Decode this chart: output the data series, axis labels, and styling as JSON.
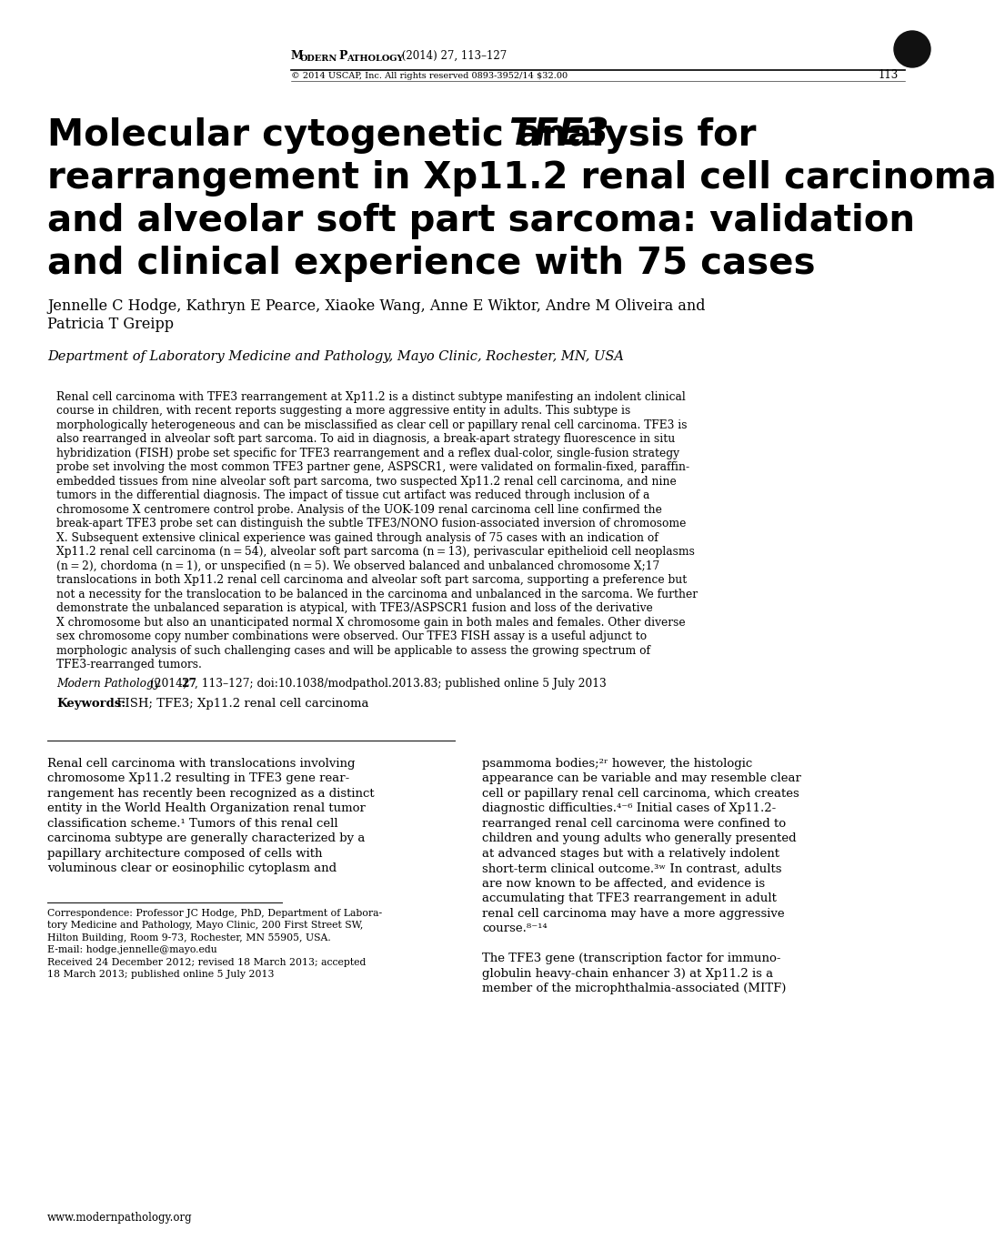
{
  "bg_color": "#ffffff",
  "header_copyright": "© 2014 USCAP, Inc. All rights reserved 0893-3952/14 $32.00",
  "header_page": "113",
  "title_line1_normal": "Molecular cytogenetic analysis for ",
  "title_line1_italic": "TFE3",
  "title_line2": "rearrangement in Xp11.2 renal cell carcinoma",
  "title_line3": "and alveolar soft part sarcoma: validation",
  "title_line4": "and clinical experience with 75 cases",
  "authors_line1": "Jennelle C Hodge, Kathryn E Pearce, Xiaoke Wang, Anne E Wiktor, Andre M Oliveira and",
  "authors_line2": "Patricia T Greipp",
  "affiliation": "Department of Laboratory Medicine and Pathology, Mayo Clinic, Rochester, MN, USA",
  "abstract_lines": [
    "Renal cell carcinoma with TFE3 rearrangement at Xp11.2 is a distinct subtype manifesting an indolent clinical",
    "course in children, with recent reports suggesting a more aggressive entity in adults. This subtype is",
    "morphologically heterogeneous and can be misclassified as clear cell or papillary renal cell carcinoma. TFE3 is",
    "also rearranged in alveolar soft part sarcoma. To aid in diagnosis, a break-apart strategy fluorescence in situ",
    "hybridization (FISH) probe set specific for TFE3 rearrangement and a reflex dual-color, single-fusion strategy",
    "probe set involving the most common TFE3 partner gene, ASPSCR1, were validated on formalin-fixed, paraffin-",
    "embedded tissues from nine alveolar soft part sarcoma, two suspected Xp11.2 renal cell carcinoma, and nine",
    "tumors in the differential diagnosis. The impact of tissue cut artifact was reduced through inclusion of a",
    "chromosome X centromere control probe. Analysis of the UOK-109 renal carcinoma cell line confirmed the",
    "break-apart TFE3 probe set can distinguish the subtle TFE3/NONO fusion-associated inversion of chromosome",
    "X. Subsequent extensive clinical experience was gained through analysis of 75 cases with an indication of",
    "Xp11.2 renal cell carcinoma (n = 54), alveolar soft part sarcoma (n = 13), perivascular epithelioid cell neoplasms",
    "(n = 2), chordoma (n = 1), or unspecified (n = 5). We observed balanced and unbalanced chromosome X;17",
    "translocations in both Xp11.2 renal cell carcinoma and alveolar soft part sarcoma, supporting a preference but",
    "not a necessity for the translocation to be balanced in the carcinoma and unbalanced in the sarcoma. We further",
    "demonstrate the unbalanced separation is atypical, with TFE3/ASPSCR1 fusion and loss of the derivative",
    "X chromosome but also an unanticipated normal X chromosome gain in both males and females. Other diverse",
    "sex chromosome copy number combinations were observed. Our TFE3 FISH assay is a useful adjunct to",
    "morphologic analysis of such challenging cases and will be applicable to assess the growing spectrum of",
    "TFE3-rearranged tumors."
  ],
  "citation_italic": "Modern Pathology",
  "citation_rest": " (2014) ",
  "citation_bold": "27",
  "citation_end": ", 113–127; doi:10.1038/modpathol.2013.83; published online 5 July 2013",
  "keywords_bold": "Keywords:",
  "keywords_rest": " FISH; TFE3; Xp11.2 renal cell carcinoma",
  "col1_lines": [
    "Renal cell carcinoma with translocations involving",
    "chromosome Xp11.2 resulting in TFE3 gene rear-",
    "rangement has recently been recognized as a distinct",
    "entity in the World Health Organization renal tumor",
    "classification scheme.¹ Tumors of this renal cell",
    "carcinoma subtype are generally characterized by a",
    "papillary architecture composed of cells with",
    "voluminous clear or eosinophilic cytoplasm and"
  ],
  "col2_lines": [
    "psammoma bodies;²ʳ however, the histologic",
    "appearance can be variable and may resemble clear",
    "cell or papillary renal cell carcinoma, which creates",
    "diagnostic difficulties.⁴⁻⁶ Initial cases of Xp11.2-",
    "rearranged renal cell carcinoma were confined to",
    "children and young adults who generally presented",
    "at advanced stages but with a relatively indolent",
    "short-term clinical outcome.³ʷ In contrast, adults",
    "are now known to be affected, and evidence is",
    "accumulating that TFE3 rearrangement in adult",
    "renal cell carcinoma may have a more aggressive",
    "course.⁸⁻¹⁴",
    "",
    "The TFE3 gene (transcription factor for immuno-",
    "globulin heavy-chain enhancer 3) at Xp11.2 is a",
    "member of the microphthalmia-associated (MITF)"
  ],
  "footnote_lines": [
    "Correspondence: Professor JC Hodge, PhD, Department of Labora-",
    "tory Medicine and Pathology, Mayo Clinic, 200 First Street SW,",
    "Hilton Building, Room 9-73, Rochester, MN 55905, USA.",
    "E-mail: hodge.jennelle@mayo.edu",
    "Received 24 December 2012; revised 18 March 2013; accepted",
    "18 March 2013; published online 5 July 2013"
  ],
  "website": "www.modernpathology.org"
}
